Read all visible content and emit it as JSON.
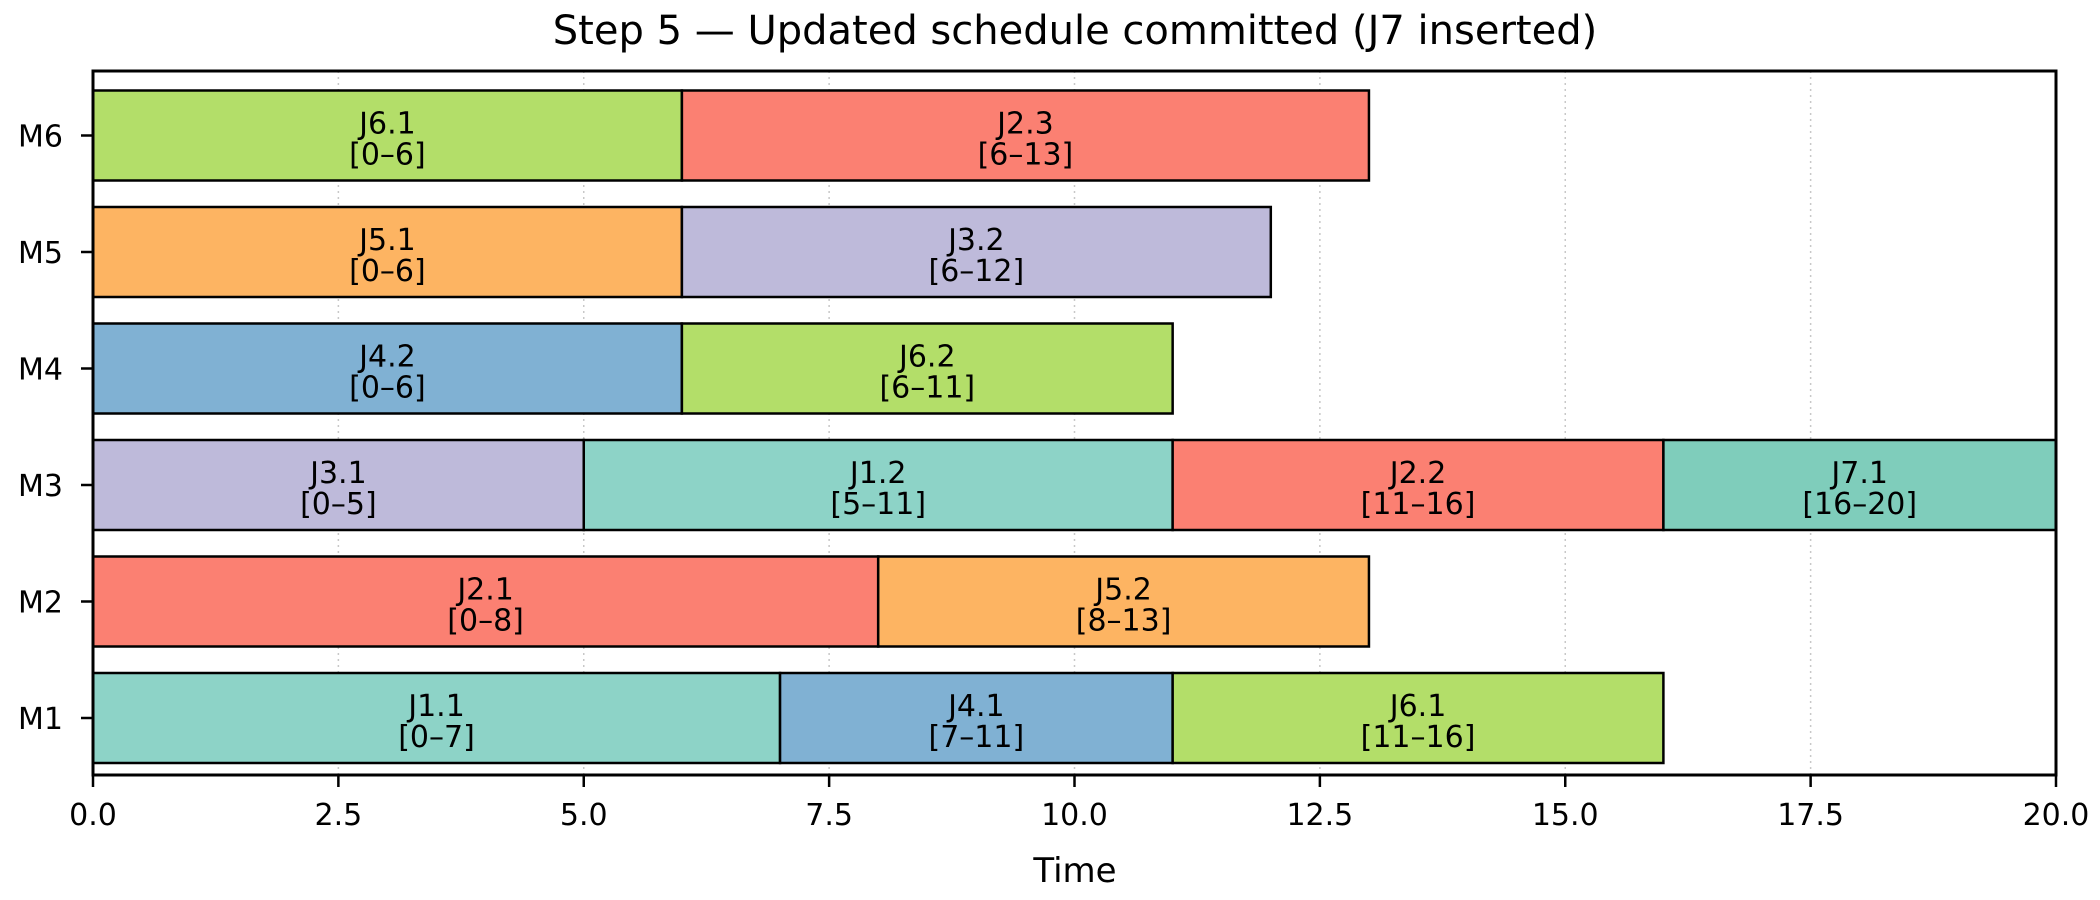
{
  "chart_data": {
    "type": "gantt",
    "title": "Step 5 — Updated schedule committed (J7 inserted)",
    "xlabel": "Time",
    "ylabel": "",
    "xlim": [
      0,
      20
    ],
    "xticks": [
      "0.0",
      "2.5",
      "5.0",
      "7.5",
      "10.0",
      "12.5",
      "15.0",
      "17.5",
      "20.0"
    ],
    "xgrid": "dotted vertical",
    "machines": [
      "M1",
      "M2",
      "M3",
      "M4",
      "M5",
      "M6"
    ],
    "colors": {
      "J1": "#8dd3c7",
      "J2": "#fb8072",
      "J3": "#bebada",
      "J4": "#80b1d3",
      "J5": "#fdb462",
      "J6": "#b3de69",
      "J7": "#7fcdbb"
    },
    "operations": [
      {
        "machine": "M1",
        "job": "J1",
        "label": "J1.1",
        "start": 0,
        "end": 7,
        "range": "[0–7]"
      },
      {
        "machine": "M1",
        "job": "J4",
        "label": "J4.1",
        "start": 7,
        "end": 11,
        "range": "[7–11]"
      },
      {
        "machine": "M1",
        "job": "J6",
        "label": "J6.1",
        "start": 11,
        "end": 16,
        "range": "[11–16]"
      },
      {
        "machine": "M2",
        "job": "J2",
        "label": "J2.1",
        "start": 0,
        "end": 8,
        "range": "[0–8]"
      },
      {
        "machine": "M2",
        "job": "J5",
        "label": "J5.2",
        "start": 8,
        "end": 13,
        "range": "[8–13]"
      },
      {
        "machine": "M3",
        "job": "J3",
        "label": "J3.1",
        "start": 0,
        "end": 5,
        "range": "[0–5]"
      },
      {
        "machine": "M3",
        "job": "J1",
        "label": "J1.2",
        "start": 5,
        "end": 11,
        "range": "[5–11]"
      },
      {
        "machine": "M3",
        "job": "J2",
        "label": "J2.2",
        "start": 11,
        "end": 16,
        "range": "[11–16]"
      },
      {
        "machine": "M3",
        "job": "J7",
        "label": "J7.1",
        "start": 16,
        "end": 20,
        "range": "[16–20]"
      },
      {
        "machine": "M4",
        "job": "J4",
        "label": "J4.2",
        "start": 0,
        "end": 6,
        "range": "[0–6]"
      },
      {
        "machine": "M4",
        "job": "J6",
        "label": "J6.2",
        "start": 6,
        "end": 11,
        "range": "[6–11]"
      },
      {
        "machine": "M5",
        "job": "J5",
        "label": "J5.1",
        "start": 0,
        "end": 6,
        "range": "[0–6]"
      },
      {
        "machine": "M5",
        "job": "J3",
        "label": "J3.2",
        "start": 6,
        "end": 12,
        "range": "[6–12]"
      },
      {
        "machine": "M6",
        "job": "J6",
        "label": "J6.1",
        "start": 0,
        "end": 6,
        "range": "[0–6]"
      },
      {
        "machine": "M6",
        "job": "J2",
        "label": "J2.3",
        "start": 6,
        "end": 13,
        "range": "[6–13]"
      }
    ]
  }
}
